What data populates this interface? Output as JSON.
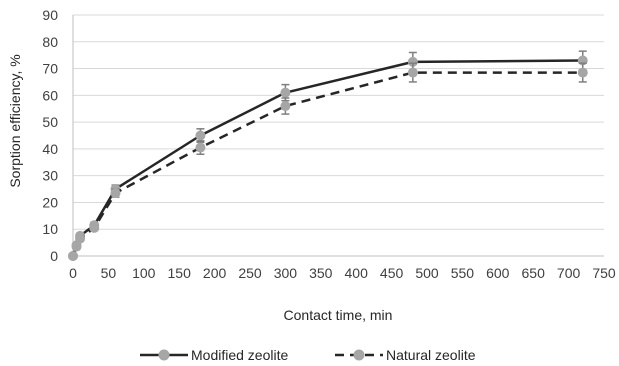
{
  "chart_data": {
    "type": "line",
    "title": "",
    "xlabel": "Contact time, min",
    "ylabel": "Sorption efficiency, %",
    "xlim": [
      0,
      750
    ],
    "ylim": [
      0,
      90
    ],
    "xticks": [
      0,
      50,
      100,
      150,
      200,
      250,
      300,
      350,
      400,
      450,
      500,
      550,
      600,
      650,
      700,
      750
    ],
    "yticks": [
      0,
      10,
      20,
      30,
      40,
      50,
      60,
      70,
      80,
      90
    ],
    "grid": "horizontal",
    "legend_position": "bottom",
    "error_bars": true,
    "series": [
      {
        "name": "Modified zeolite",
        "line_style": "solid",
        "line_color": "#262626",
        "marker_color": "#a6a6a6",
        "error_bar_color": "#7f7f7f",
        "x": [
          0,
          5,
          10,
          30,
          60,
          180,
          300,
          480,
          720
        ],
        "y": [
          0,
          4,
          7.5,
          11.5,
          25,
          45,
          61,
          72.5,
          73
        ],
        "err": [
          0,
          0.8,
          1,
          1,
          1.5,
          2.5,
          3,
          3.5,
          3.5
        ]
      },
      {
        "name": "Natural zeolite",
        "line_style": "dashed",
        "line_color": "#262626",
        "marker_color": "#a6a6a6",
        "error_bar_color": "#7f7f7f",
        "x": [
          0,
          5,
          10,
          30,
          60,
          180,
          300,
          480,
          720
        ],
        "y": [
          0,
          3.5,
          6.5,
          10.5,
          23.5,
          40.5,
          56,
          68.5,
          68.5
        ],
        "err": [
          0,
          0.8,
          1,
          1,
          1.5,
          2.5,
          3,
          3.5,
          3.5
        ]
      }
    ]
  }
}
